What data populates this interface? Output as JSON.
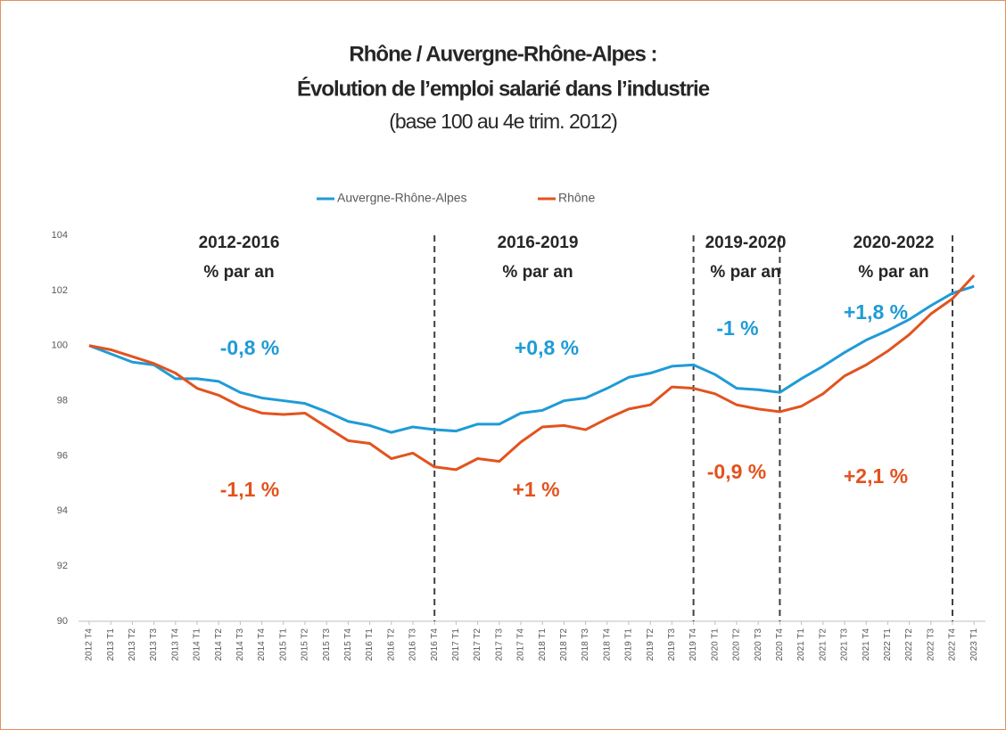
{
  "chart_data": {
    "type": "line",
    "title": "Rhône / Auvergne-Rhône-Alpes :",
    "subtitle": "Évolution de l’emploi salarié dans l’industrie",
    "note": "(base 100 au 4e trim. 2012)",
    "categories": [
      "2012 T4",
      "2013 T1",
      "2013 T2",
      "2013 T3",
      "2013 T4",
      "2014 T1",
      "2014 T2",
      "2014 T3",
      "2014 T4",
      "2015 T1",
      "2015 T2",
      "2015 T3",
      "2015 T4",
      "2016 T1",
      "2016 T2",
      "2016 T3",
      "2016 T4",
      "2017 T1",
      "2017 T2",
      "2017 T3",
      "2017 T4",
      "2018 T1",
      "2018 T2",
      "2018 T3",
      "2018 T4",
      "2019 T1",
      "2019 T2",
      "2019 T3",
      "2019 T4",
      "2020 T1",
      "2020 T2",
      "2020 T3",
      "2020 T4",
      "2021 T1",
      "2021 T2",
      "2021 T3",
      "2021 T4",
      "2022 T1",
      "2022 T2",
      "2022 T3",
      "2022 T4",
      "2023 T1"
    ],
    "series": [
      {
        "name": "Auvergne-Rhône-Alpes",
        "color": "#1f9bd7",
        "values": [
          100,
          99.7,
          99.4,
          99.3,
          98.8,
          98.8,
          98.7,
          98.3,
          98.1,
          98.0,
          97.9,
          97.6,
          97.25,
          97.1,
          96.85,
          97.05,
          96.95,
          96.9,
          97.15,
          97.15,
          97.55,
          97.65,
          98.0,
          98.1,
          98.45,
          98.85,
          99.0,
          99.25,
          99.3,
          98.95,
          98.45,
          98.4,
          98.3,
          98.8,
          99.25,
          99.75,
          100.2,
          100.55,
          100.95,
          101.45,
          101.9,
          102.15
        ]
      },
      {
        "name": "Rhône",
        "color": "#e2531e",
        "values": [
          100,
          99.85,
          99.6,
          99.35,
          99.0,
          98.45,
          98.2,
          97.8,
          97.55,
          97.5,
          97.55,
          97.05,
          96.55,
          96.45,
          95.9,
          96.1,
          95.6,
          95.5,
          95.9,
          95.8,
          96.5,
          97.05,
          97.1,
          96.95,
          97.35,
          97.7,
          97.85,
          98.5,
          98.45,
          98.25,
          97.85,
          97.7,
          97.6,
          97.8,
          98.25,
          98.9,
          99.3,
          99.8,
          100.4,
          101.15,
          101.7,
          102.55
        ]
      }
    ],
    "ylim": [
      90,
      104
    ],
    "yticks": [
      90,
      92,
      94,
      96,
      98,
      100,
      102,
      104
    ],
    "grid": false,
    "periods": [
      {
        "label": "2012-2016",
        "unit": "% par an",
        "ara": "-0,8 %",
        "rhone": "-1,1 %"
      },
      {
        "label": "2016-2019",
        "unit": "% par an",
        "ara": "+0,8 %",
        "rhone": "+1 %"
      },
      {
        "label": "2019-2020",
        "unit": "% par an",
        "ara": "-1 %",
        "rhone": "-0,9 %"
      },
      {
        "label": "2020-2022",
        "unit": "% par an",
        "ara": "+1,8 %",
        "rhone": "+2,1 %"
      }
    ]
  }
}
